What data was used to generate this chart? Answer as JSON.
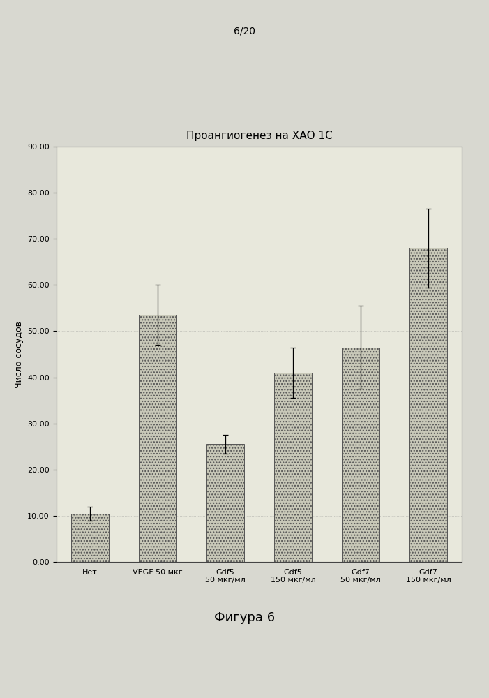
{
  "title": "Проангиогенез на ХАО 1С",
  "ylabel": "Число сосудов",
  "page_label": "6/20",
  "figure_label": "Фигура 6",
  "categories": [
    "Нет",
    "VEGF 50 мкг",
    "Gdf5\n50 мкг/мл",
    "Gdf5\n150 мкг/мл",
    "Gdf7\n50 мкг/мл",
    "Gdf7\n150 мкг/мл"
  ],
  "values": [
    10.5,
    53.5,
    25.5,
    41.0,
    46.5,
    68.0
  ],
  "errors": [
    1.5,
    6.5,
    2.0,
    5.5,
    9.0,
    8.5
  ],
  "ylim": [
    0,
    90
  ],
  "yticks": [
    0.0,
    10.0,
    20.0,
    30.0,
    40.0,
    50.0,
    60.0,
    70.0,
    80.0,
    90.0
  ],
  "bar_color": "#c8c8b8",
  "bar_hatch": "....",
  "bar_edgecolor": "#555555",
  "page_bg_color": "#d8d8d0",
  "chart_bg_color": "#e8e8dc",
  "title_fontsize": 11,
  "ylabel_fontsize": 9,
  "tick_fontsize": 8,
  "xlabel_fontsize": 8,
  "figure_label_fontsize": 13
}
